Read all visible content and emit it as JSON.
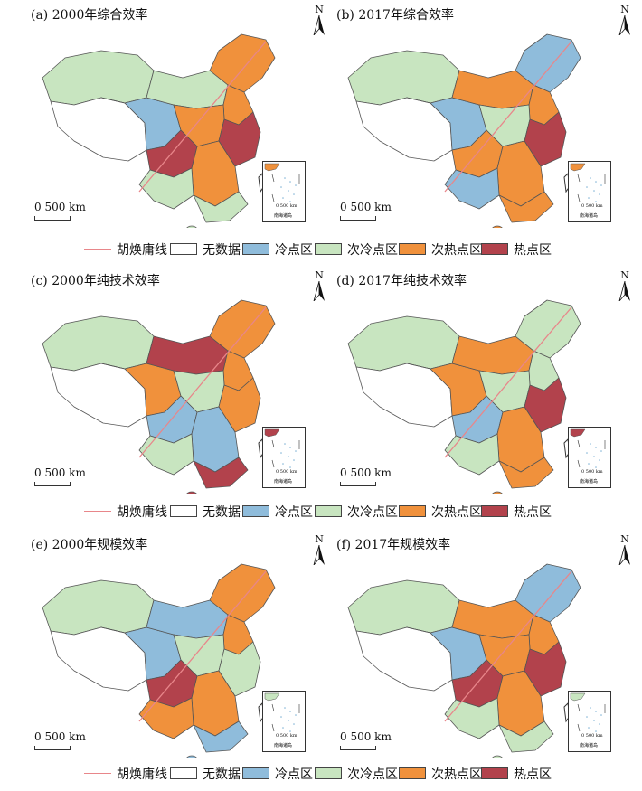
{
  "colors": {
    "no_data": "#ffffff",
    "cold": "#8fbcdb",
    "sub_cold": "#c8e5c0",
    "sub_hot": "#f0913c",
    "hot": "#b2424c",
    "hu_line": "#e8868a",
    "boundary": "#555555"
  },
  "panels": [
    {
      "title": "(a) 2000年综合效率",
      "scale": "0  500 km",
      "north": "N",
      "inset_scale": "0   500 km",
      "inset_label": "南海诸岛",
      "pattern": [
        "sub_cold",
        "no_data",
        "cold",
        "sub_cold",
        "sub_hot",
        "sub_hot",
        "sub_hot",
        "hot",
        "hot",
        "sub_hot",
        "sub_cold",
        "sub_cold"
      ],
      "inset_color": "sub_hot"
    },
    {
      "title": "(b) 2017年综合效率",
      "scale": "0  500 km",
      "north": "N",
      "inset_scale": "0   500 km",
      "inset_label": "南海诸岛",
      "pattern": [
        "sub_cold",
        "no_data",
        "cold",
        "sub_hot",
        "cold",
        "sub_hot",
        "sub_cold",
        "sub_hot",
        "hot",
        "sub_hot",
        "cold",
        "sub_hot"
      ],
      "inset_color": "sub_hot"
    },
    {
      "title": "(c) 2000年纯技术效率",
      "scale": "0  500 km",
      "north": "N",
      "inset_scale": "0   500 km",
      "inset_label": "南海诸岛",
      "pattern": [
        "sub_cold",
        "no_data",
        "sub_hot",
        "hot",
        "sub_hot",
        "sub_hot",
        "sub_cold",
        "cold",
        "sub_hot",
        "cold",
        "sub_cold",
        "hot"
      ],
      "inset_color": "hot"
    },
    {
      "title": "(d) 2017年纯技术效率",
      "scale": "0  500 km",
      "north": "N",
      "inset_scale": "0   500 km",
      "inset_label": "南海诸岛",
      "pattern": [
        "sub_cold",
        "no_data",
        "sub_hot",
        "sub_hot",
        "sub_cold",
        "sub_cold",
        "sub_cold",
        "cold",
        "hot",
        "sub_hot",
        "sub_cold",
        "sub_hot"
      ],
      "inset_color": "hot"
    },
    {
      "title": "(e) 2000年规模效率",
      "scale": "0  500 km",
      "north": "N",
      "inset_scale": "0   500 km",
      "inset_label": "南海诸岛",
      "pattern": [
        "sub_cold",
        "no_data",
        "cold",
        "cold",
        "sub_hot",
        "sub_hot",
        "sub_cold",
        "hot",
        "sub_cold",
        "sub_hot",
        "sub_hot",
        "cold"
      ],
      "inset_color": "sub_cold"
    },
    {
      "title": "(f) 2017年规模效率",
      "scale": "0  500 km",
      "north": "N",
      "inset_scale": "0   500 km",
      "inset_label": "南海诸岛",
      "pattern": [
        "sub_cold",
        "no_data",
        "cold",
        "sub_hot",
        "cold",
        "sub_hot",
        "sub_hot",
        "hot",
        "hot",
        "sub_hot",
        "sub_cold",
        "sub_cold"
      ],
      "inset_color": "sub_cold"
    }
  ],
  "legend": {
    "hu_line": "胡焕庸线",
    "no_data": "无数据",
    "cold": "冷点区",
    "sub_cold": "次冷点区",
    "sub_hot": "次热点区",
    "hot": "热点区"
  }
}
